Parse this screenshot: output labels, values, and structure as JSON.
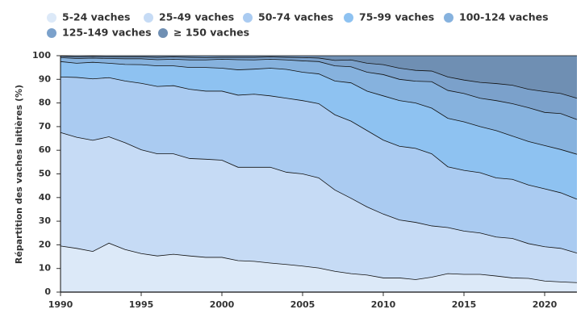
{
  "chart_data": {
    "type": "stacked_area",
    "ylabel": "Répartition des vaches laitières (%)",
    "x": [
      1990,
      1991,
      1992,
      1993,
      1994,
      1995,
      1996,
      1997,
      1998,
      1999,
      2000,
      2001,
      2002,
      2003,
      2004,
      2005,
      2006,
      2007,
      2008,
      2009,
      2010,
      2011,
      2012,
      2013,
      2014,
      2015,
      2016,
      2017,
      2018,
      2019,
      2020,
      2021,
      2022
    ],
    "xlim": [
      1990,
      2022
    ],
    "xticks": [
      1990,
      1995,
      2000,
      2005,
      2010,
      2015,
      2020
    ],
    "ylim": [
      0,
      100
    ],
    "yticks": [
      0,
      10,
      20,
      30,
      40,
      50,
      60,
      70,
      80,
      90,
      100
    ],
    "series": [
      {
        "name": "5-24 vaches",
        "color": "#dce9f8",
        "values": [
          19.5,
          18.5,
          17.2,
          20.7,
          18.0,
          16.3,
          15.3,
          16.0,
          15.3,
          14.7,
          14.7,
          13.3,
          13.0,
          12.3,
          11.7,
          11.0,
          10.2,
          8.8,
          7.8,
          7.2,
          6.0,
          6.0,
          5.3,
          6.3,
          7.8,
          7.5,
          7.5,
          6.8,
          6.0,
          5.8,
          4.7,
          4.3,
          4.0
        ]
      },
      {
        "name": "25-49 vaches",
        "color": "#c6dbf5",
        "values": [
          48.0,
          47.0,
          47.0,
          45.0,
          45.2,
          43.9,
          43.2,
          42.5,
          41.2,
          41.5,
          41.1,
          39.5,
          39.8,
          40.5,
          39.0,
          39.0,
          38.1,
          34.4,
          31.9,
          28.8,
          27.0,
          24.5,
          24.2,
          21.7,
          19.5,
          18.3,
          17.5,
          16.5,
          16.7,
          14.7,
          14.5,
          14.2,
          12.5
        ]
      },
      {
        "name": "50-74 vaches",
        "color": "#aacbf1",
        "values": [
          23.5,
          25.3,
          26.0,
          25.0,
          26.1,
          28.1,
          28.5,
          28.8,
          29.3,
          28.8,
          29.2,
          30.5,
          30.9,
          30.2,
          31.3,
          31.0,
          31.4,
          31.8,
          32.6,
          32.3,
          31.3,
          31.2,
          31.3,
          30.5,
          25.7,
          25.7,
          25.5,
          25.0,
          25.0,
          24.8,
          24.5,
          23.5,
          22.8
        ]
      },
      {
        "name": "75-99 vaches",
        "color": "#8ec2f1",
        "values": [
          6.5,
          6.0,
          7.0,
          6.1,
          7.0,
          7.9,
          8.7,
          8.4,
          9.2,
          10.0,
          9.7,
          10.7,
          10.6,
          11.7,
          12.2,
          12.0,
          12.6,
          14.3,
          16.2,
          16.7,
          18.7,
          19.3,
          19.2,
          19.3,
          20.5,
          20.5,
          19.5,
          20.0,
          18.3,
          18.4,
          18.3,
          18.3,
          19.0
        ]
      },
      {
        "name": "100-124 vaches",
        "color": "#86b2de",
        "values": [
          1.7,
          2.0,
          1.8,
          2.0,
          2.4,
          2.5,
          2.6,
          2.8,
          3.2,
          3.2,
          3.8,
          4.3,
          3.9,
          3.8,
          4.0,
          4.8,
          5.2,
          6.4,
          6.8,
          8.0,
          9.0,
          9.0,
          9.2,
          11.2,
          11.8,
          12.0,
          12.0,
          12.7,
          13.7,
          14.3,
          14.0,
          15.2,
          14.7
        ]
      },
      {
        "name": "125-149 vaches",
        "color": "#7ba1cb",
        "values": [
          0.6,
          0.7,
          0.7,
          0.7,
          0.8,
          0.8,
          1.0,
          1.0,
          1.1,
          1.0,
          0.8,
          1.0,
          1.1,
          1.0,
          1.1,
          1.4,
          1.5,
          2.3,
          2.9,
          3.8,
          4.2,
          4.7,
          4.6,
          4.5,
          5.7,
          5.7,
          6.7,
          7.2,
          7.8,
          7.8,
          8.8,
          8.5,
          9.0
        ]
      },
      {
        "name": "≥ 150 vaches",
        "color": "#6f8fb3",
        "values": [
          0.2,
          0.5,
          0.3,
          0.5,
          0.5,
          0.5,
          0.7,
          0.5,
          0.7,
          0.8,
          0.7,
          0.7,
          0.7,
          0.5,
          0.7,
          0.8,
          1.0,
          2.0,
          1.8,
          3.2,
          3.8,
          5.3,
          6.2,
          6.5,
          9.0,
          10.3,
          11.3,
          11.8,
          12.5,
          14.2,
          15.2,
          16.0,
          18.0
        ]
      }
    ]
  }
}
